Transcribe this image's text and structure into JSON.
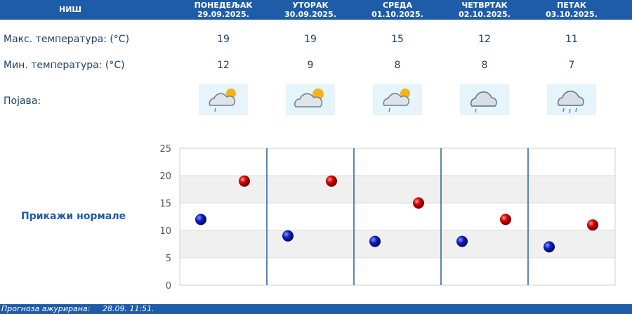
{
  "header": {
    "city": "НИШ",
    "days": [
      {
        "weekday": "ПОНЕДЕЉАК",
        "date": "29.09.2025."
      },
      {
        "weekday": "УТОРАК",
        "date": "30.09.2025."
      },
      {
        "weekday": "СРЕДА",
        "date": "01.10.2025."
      },
      {
        "weekday": "ЧЕТВРТАК",
        "date": "02.10.2025."
      },
      {
        "weekday": "ПЕТАК",
        "date": "03.10.2025."
      }
    ]
  },
  "rows": {
    "max_label": "Макс. температура: (°C)",
    "min_label": "Мин. температура: (°C)",
    "phenomenon_label": "Појава:"
  },
  "max_temps": [
    "19",
    "19",
    "15",
    "12",
    "11"
  ],
  "min_temps": [
    "12",
    "9",
    "8",
    "8",
    "7"
  ],
  "weather_icons": [
    "partly-cloudy-light-rain-icon",
    "partly-cloudy-icon",
    "partly-cloudy-light-rain-icon",
    "cloudy-light-rain-icon",
    "cloudy-rain-icon"
  ],
  "show_normals_label": "Прикажи нормале",
  "footer": {
    "label": "Прогноза ажурирана:",
    "value": "28.09. 11:51."
  },
  "colors": {
    "header_blue": "#1f5ca8",
    "max_marker": "#cc0000",
    "min_marker": "#0a1aa8"
  },
  "chart_data": {
    "type": "scatter",
    "categories": [
      "ПОНЕДЕЉАК",
      "УТОРАК",
      "СРЕДА",
      "ЧЕТВРТАК",
      "ПЕТАК"
    ],
    "series": [
      {
        "values": [
          12,
          9,
          8,
          8,
          7
        ]
      },
      {
        "values": [
          19,
          19,
          15,
          12,
          11
        ]
      }
    ],
    "ylim": [
      0,
      25
    ],
    "yticks": [
      "0",
      "5",
      "10",
      "15",
      "20",
      "25"
    ],
    "grid": true
  }
}
